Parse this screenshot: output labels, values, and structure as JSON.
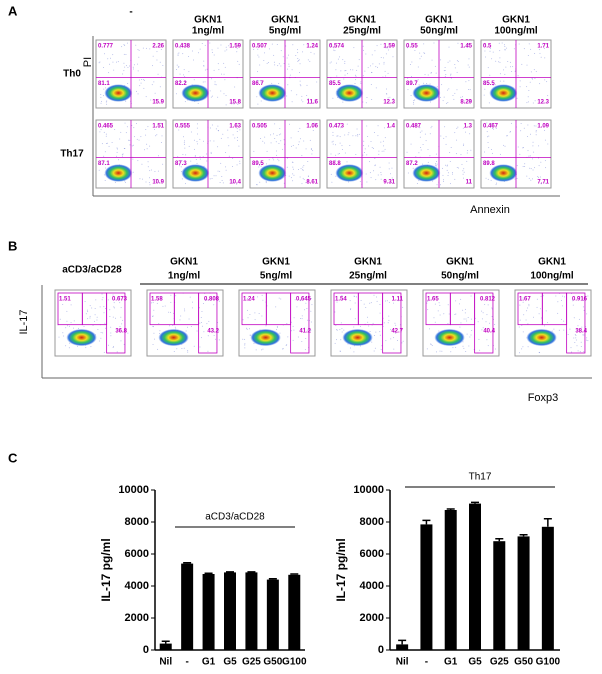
{
  "panel_a": {
    "letter": "A",
    "y_axis_label": "PI",
    "x_axis_label": "Annexin",
    "columns": [
      [
        "-"
      ],
      [
        "GKN1",
        "1ng/ml"
      ],
      [
        "GKN1",
        "5ng/ml"
      ],
      [
        "GKN1",
        "25ng/ml"
      ],
      [
        "GKN1",
        "50ng/ml"
      ],
      [
        "GKN1",
        "100ng/ml"
      ]
    ],
    "rows": [
      {
        "label": "Th0",
        "plots": [
          [
            "0.777",
            "2.26",
            "81.1",
            "15.9"
          ],
          [
            "0.438",
            "1.59",
            "82.2",
            "15.8"
          ],
          [
            "0.507",
            "1.24",
            "86.7",
            "11.6"
          ],
          [
            "0.574",
            "1.59",
            "85.5",
            "12.3"
          ],
          [
            "0.55",
            "1.45",
            "89.7",
            "8.29"
          ],
          [
            "0.5",
            "1.71",
            "85.5",
            "12.3"
          ]
        ]
      },
      {
        "label": "Th17",
        "plots": [
          [
            "0.465",
            "1.51",
            "87.1",
            "10.9"
          ],
          [
            "0.555",
            "1.63",
            "87.3",
            "10.4"
          ],
          [
            "0.505",
            "1.06",
            "89.5",
            "8.61"
          ],
          [
            "0.473",
            "1.4",
            "88.8",
            "9.31"
          ],
          [
            "0.487",
            "1.3",
            "87.2",
            "11"
          ],
          [
            "0.467",
            "1.09",
            "89.8",
            "7.71"
          ]
        ]
      }
    ]
  },
  "panel_b": {
    "letter": "B",
    "y_axis_label": "IL-17",
    "x_axis_label": "Foxp3",
    "columns": [
      [
        "aCD3/aCD28"
      ],
      [
        "GKN1",
        "1ng/ml"
      ],
      [
        "GKN1",
        "5ng/ml"
      ],
      [
        "GKN1",
        "25ng/ml"
      ],
      [
        "GKN1",
        "50ng/ml"
      ],
      [
        "GKN1",
        "100ng/ml"
      ]
    ],
    "plots": [
      [
        "1.51",
        "0.673",
        "36.8"
      ],
      [
        "1.58",
        "0.808",
        "43.2"
      ],
      [
        "1.24",
        "0.645",
        "41.2"
      ],
      [
        "1.54",
        "1.11",
        "42.7"
      ],
      [
        "1.65",
        "0.812",
        "40.4"
      ],
      [
        "1.67",
        "0.916",
        "38.4"
      ]
    ]
  },
  "panel_c": {
    "letter": "C"
  },
  "chart_data": [
    {
      "type": "bar",
      "y_label": "IL-17 pg/ml",
      "annotation": "aCD3/aCD28",
      "color": "#000000",
      "categories": [
        "Nil",
        "-",
        "G1",
        "G5",
        "G25",
        "G50",
        "G100"
      ],
      "values": [
        400,
        5400,
        4750,
        4850,
        4850,
        4400,
        4700
      ],
      "errors": [
        150,
        50,
        50,
        30,
        30,
        50,
        50
      ],
      "ylim": [
        0,
        10000
      ],
      "yticks": [
        0,
        2000,
        4000,
        6000,
        8000,
        10000
      ]
    },
    {
      "type": "bar",
      "y_label": "IL-17 pg/ml",
      "annotation": "Th17",
      "color": "#000000",
      "categories": [
        "Nil",
        "-",
        "G1",
        "G5",
        "G25",
        "G50",
        "G100"
      ],
      "values": [
        350,
        7850,
        8750,
        9150,
        6800,
        7100,
        7700
      ],
      "errors": [
        250,
        250,
        60,
        80,
        150,
        100,
        500
      ],
      "ylim": [
        0,
        10000
      ],
      "yticks": [
        0,
        2000,
        4000,
        6000,
        8000,
        10000
      ]
    }
  ]
}
